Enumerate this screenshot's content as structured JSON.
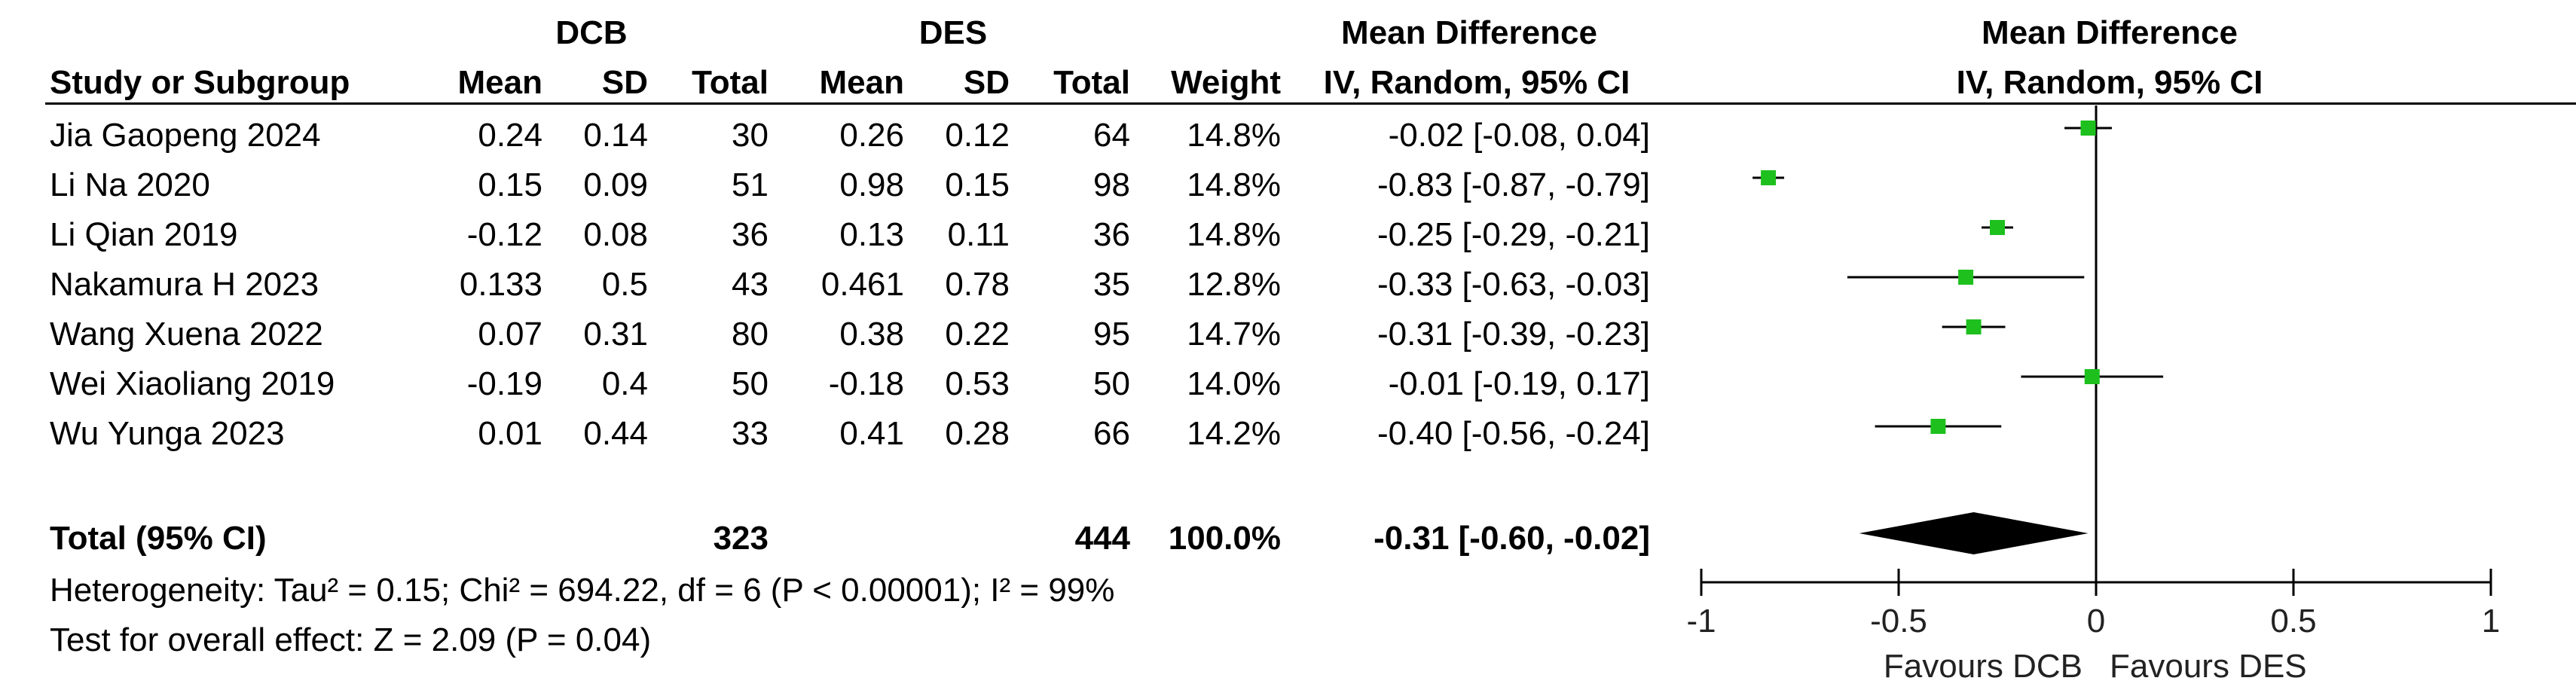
{
  "headers": {
    "group1": "DCB",
    "group2": "DES",
    "md_title": "Mean Difference",
    "md_method": "IV, Random, 95% CI",
    "plot_title": "Mean Difference",
    "plot_method": "IV, Random, 95% CI",
    "study": "Study or Subgroup",
    "mean": "Mean",
    "sd": "SD",
    "total": "Total",
    "weight": "Weight"
  },
  "rows": [
    {
      "study": "Jia Gaopeng 2024",
      "m1": "0.24",
      "sd1": "0.14",
      "n1": "30",
      "m2": "0.26",
      "sd2": "0.12",
      "n2": "64",
      "weight": "14.8%",
      "ci": "-0.02 [-0.08, 0.04]"
    },
    {
      "study": "Li Na 2020",
      "m1": "0.15",
      "sd1": "0.09",
      "n1": "51",
      "m2": "0.98",
      "sd2": "0.15",
      "n2": "98",
      "weight": "14.8%",
      "ci": "-0.83 [-0.87, -0.79]"
    },
    {
      "study": "Li Qian 2019",
      "m1": "-0.12",
      "sd1": "0.08",
      "n1": "36",
      "m2": "0.13",
      "sd2": "0.11",
      "n2": "36",
      "weight": "14.8%",
      "ci": "-0.25 [-0.29, -0.21]"
    },
    {
      "study": "Nakamura H 2023",
      "m1": "0.133",
      "sd1": "0.5",
      "n1": "43",
      "m2": "0.461",
      "sd2": "0.78",
      "n2": "35",
      "weight": "12.8%",
      "ci": "-0.33 [-0.63, -0.03]"
    },
    {
      "study": "Wang Xuena 2022",
      "m1": "0.07",
      "sd1": "0.31",
      "n1": "80",
      "m2": "0.38",
      "sd2": "0.22",
      "n2": "95",
      "weight": "14.7%",
      "ci": "-0.31 [-0.39, -0.23]"
    },
    {
      "study": "Wei Xiaoliang 2019",
      "m1": "-0.19",
      "sd1": "0.4",
      "n1": "50",
      "m2": "-0.18",
      "sd2": "0.53",
      "n2": "50",
      "weight": "14.0%",
      "ci": "-0.01 [-0.19, 0.17]"
    },
    {
      "study": "Wu Yunga 2023",
      "m1": "0.01",
      "sd1": "0.44",
      "n1": "33",
      "m2": "0.41",
      "sd2": "0.28",
      "n2": "66",
      "weight": "14.2%",
      "ci": "-0.40 [-0.56, -0.24]"
    }
  ],
  "total": {
    "label": "Total (95% CI)",
    "n1": "323",
    "n2": "444",
    "weight": "100.0%",
    "ci": "-0.31 [-0.60, -0.02]"
  },
  "heterogeneity": "Heterogeneity: Tau² = 0.15; Chi² = 694.22, df = 6 (P < 0.00001); I² = 99%",
  "overall_effect": "Test for overall effect: Z = 2.09 (P = 0.04)",
  "favours_left": "Favours DCB",
  "favours_right": "Favours DES",
  "colors": {
    "marker": "#1ec01e",
    "line": "#000000",
    "diamond": "#000000"
  },
  "chart_data": {
    "type": "scatter",
    "subtype": "forest",
    "xlim": [
      -1,
      1
    ],
    "xticks": [
      -1,
      -0.5,
      0,
      0.5,
      1
    ],
    "xtick_labels": [
      "-1",
      "-0.5",
      "0",
      "0.5",
      "1"
    ],
    "studies": [
      {
        "name": "Jia Gaopeng 2024",
        "md": -0.02,
        "lo": -0.08,
        "hi": 0.04,
        "weight": 14.8
      },
      {
        "name": "Li Na 2020",
        "md": -0.83,
        "lo": -0.87,
        "hi": -0.79,
        "weight": 14.8
      },
      {
        "name": "Li Qian 2019",
        "md": -0.25,
        "lo": -0.29,
        "hi": -0.21,
        "weight": 14.8
      },
      {
        "name": "Nakamura H 2023",
        "md": -0.33,
        "lo": -0.63,
        "hi": -0.03,
        "weight": 12.8
      },
      {
        "name": "Wang Xuena 2022",
        "md": -0.31,
        "lo": -0.39,
        "hi": -0.23,
        "weight": 14.7
      },
      {
        "name": "Wei Xiaoliang 2019",
        "md": -0.01,
        "lo": -0.19,
        "hi": 0.17,
        "weight": 14.0
      },
      {
        "name": "Wu Yunga 2023",
        "md": -0.4,
        "lo": -0.56,
        "hi": -0.24,
        "weight": 14.2
      }
    ],
    "pooled": {
      "md": -0.31,
      "lo": -0.6,
      "hi": -0.02
    }
  }
}
